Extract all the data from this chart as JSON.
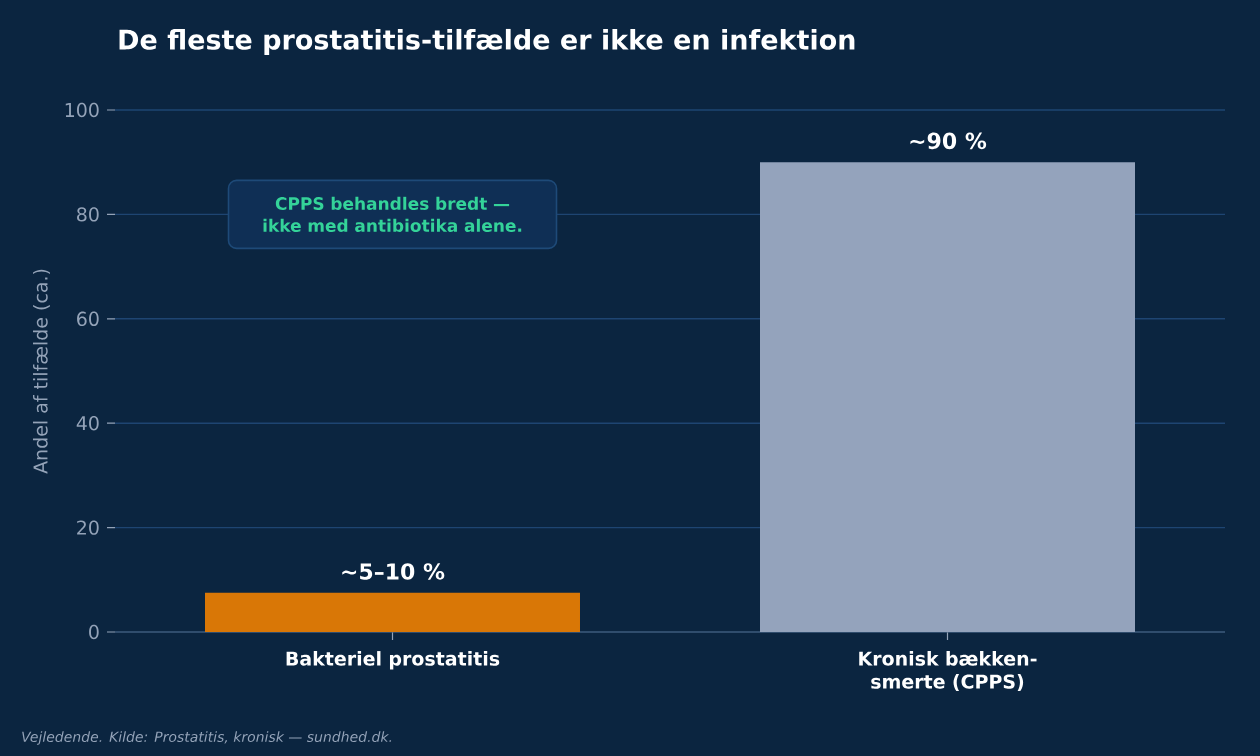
{
  "chart_data": {
    "type": "bar",
    "title": "De fleste prostatitis-tilfælde er ikke en infektion",
    "ylabel": "Andel af tilfælde (ca.)",
    "categories": [
      "Bakteriel prostatitis",
      "Kronisk bækken-smerte (CPPS)"
    ],
    "values": [
      7.5,
      90
    ],
    "colors": [
      "#d97706",
      "#94a3bc"
    ],
    "ylim": [
      0,
      100
    ],
    "yticks": [
      0,
      20,
      40,
      60,
      80,
      100
    ],
    "grid": "y",
    "annotations": [
      {
        "text": "~5–10 %",
        "x": "Bakteriel prostatitis",
        "y": 7.5
      },
      {
        "text": "~90 %",
        "x": "Kronisk bækken-smerte (CPPS)",
        "y": 90
      },
      "CPPS behandles bredt — ikke med antibiotika alene.",
      "Vejledende. Kilde: Prostatitis, kronisk — sundhed.dk."
    ]
  }
}
